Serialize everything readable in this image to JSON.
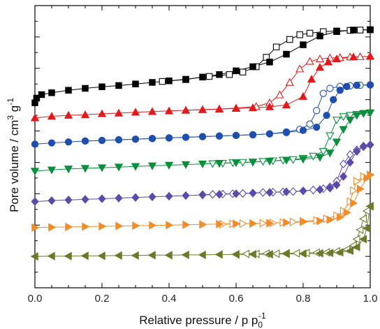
{
  "chart_data": {
    "type": "scatter",
    "title": "",
    "xlabel": "Relative pressure / p p",
    "xlabel_sub": "0",
    "xlabel_sup": "-1",
    "ylabel": "Pore volume / cm",
    "ylabel_sup1": "3",
    "ylabel_mid": " g",
    "ylabel_sup2": "-1",
    "xlim": [
      0.0,
      1.0
    ],
    "ylim": [
      0,
      9
    ],
    "y_tick_labels_shown": false,
    "x_ticks": [
      "0.0",
      "0.2",
      "0.4",
      "0.6",
      "0.8",
      "1.0"
    ],
    "grid": false,
    "legend": "none",
    "series": [
      {
        "color": "#000000",
        "marker": "square",
        "adsorption": [
          [
            0.0,
            5.9
          ],
          [
            0.005,
            6.05
          ],
          [
            0.02,
            6.16
          ],
          [
            0.05,
            6.22
          ],
          [
            0.1,
            6.3
          ],
          [
            0.15,
            6.36
          ],
          [
            0.2,
            6.41
          ],
          [
            0.25,
            6.45
          ],
          [
            0.3,
            6.5
          ],
          [
            0.35,
            6.55
          ],
          [
            0.4,
            6.6
          ],
          [
            0.45,
            6.64
          ],
          [
            0.5,
            6.72
          ],
          [
            0.55,
            6.8
          ],
          [
            0.6,
            6.92
          ],
          [
            0.65,
            7.05
          ],
          [
            0.7,
            7.2
          ],
          [
            0.75,
            7.45
          ],
          [
            0.8,
            7.75
          ],
          [
            0.85,
            8.03
          ],
          [
            0.9,
            8.17
          ],
          [
            0.95,
            8.22
          ],
          [
            1.0,
            8.23
          ]
        ],
        "desorption": [
          [
            1.0,
            8.23
          ],
          [
            0.97,
            8.22
          ],
          [
            0.94,
            8.21
          ],
          [
            0.9,
            8.19
          ],
          [
            0.86,
            8.17
          ],
          [
            0.82,
            8.12
          ],
          [
            0.79,
            8.07
          ],
          [
            0.76,
            7.92
          ],
          [
            0.72,
            7.68
          ],
          [
            0.69,
            7.35
          ],
          [
            0.66,
            7.05
          ],
          [
            0.62,
            6.88
          ],
          [
            0.58,
            6.8
          ],
          [
            0.52,
            6.74
          ],
          [
            0.45,
            6.65
          ],
          [
            0.38,
            6.58
          ]
        ]
      },
      {
        "color": "#e31a1c",
        "marker": "triangle-up",
        "adsorption": [
          [
            0.0,
            5.42
          ],
          [
            0.05,
            5.47
          ],
          [
            0.1,
            5.5
          ],
          [
            0.15,
            5.52
          ],
          [
            0.2,
            5.55
          ],
          [
            0.25,
            5.57
          ],
          [
            0.3,
            5.6
          ],
          [
            0.35,
            5.62
          ],
          [
            0.4,
            5.64
          ],
          [
            0.45,
            5.66
          ],
          [
            0.5,
            5.68
          ],
          [
            0.55,
            5.7
          ],
          [
            0.6,
            5.72
          ],
          [
            0.65,
            5.74
          ],
          [
            0.7,
            5.77
          ],
          [
            0.75,
            5.83
          ],
          [
            0.8,
            6.1
          ],
          [
            0.825,
            6.65
          ],
          [
            0.85,
            7.03
          ],
          [
            0.875,
            7.2
          ],
          [
            0.9,
            7.3
          ],
          [
            0.95,
            7.36
          ],
          [
            1.0,
            7.38
          ]
        ],
        "desorption": [
          [
            1.0,
            7.38
          ],
          [
            0.97,
            7.37
          ],
          [
            0.94,
            7.36
          ],
          [
            0.91,
            7.34
          ],
          [
            0.88,
            7.33
          ],
          [
            0.85,
            7.3
          ],
          [
            0.82,
            7.22
          ],
          [
            0.79,
            6.98
          ],
          [
            0.76,
            6.55
          ],
          [
            0.73,
            6.15
          ],
          [
            0.7,
            5.9
          ],
          [
            0.66,
            5.78
          ],
          [
            0.6,
            5.73
          ],
          [
            0.55,
            5.7
          ],
          [
            0.5,
            5.68
          ],
          [
            0.45,
            5.66
          ]
        ]
      },
      {
        "color": "#1f4fae",
        "marker": "circle",
        "adsorption": [
          [
            0.0,
            4.58
          ],
          [
            0.05,
            4.62
          ],
          [
            0.1,
            4.65
          ],
          [
            0.15,
            4.68
          ],
          [
            0.2,
            4.7
          ],
          [
            0.25,
            4.72
          ],
          [
            0.3,
            4.74
          ],
          [
            0.35,
            4.76
          ],
          [
            0.4,
            4.78
          ],
          [
            0.45,
            4.8
          ],
          [
            0.5,
            4.82
          ],
          [
            0.55,
            4.84
          ],
          [
            0.6,
            4.86
          ],
          [
            0.65,
            4.88
          ],
          [
            0.7,
            4.91
          ],
          [
            0.75,
            4.95
          ],
          [
            0.8,
            5.02
          ],
          [
            0.84,
            5.12
          ],
          [
            0.87,
            5.5
          ],
          [
            0.89,
            6.0
          ],
          [
            0.91,
            6.3
          ],
          [
            0.93,
            6.42
          ],
          [
            0.96,
            6.46
          ],
          [
            1.0,
            6.47
          ]
        ],
        "desorption": [
          [
            1.0,
            6.47
          ],
          [
            0.97,
            6.46
          ],
          [
            0.94,
            6.44
          ],
          [
            0.91,
            6.42
          ],
          [
            0.88,
            6.36
          ],
          [
            0.86,
            6.2
          ],
          [
            0.84,
            5.65
          ],
          [
            0.82,
            5.22
          ],
          [
            0.79,
            5.05
          ],
          [
            0.75,
            4.97
          ],
          [
            0.7,
            4.91
          ],
          [
            0.65,
            4.88
          ],
          [
            0.6,
            4.86
          ],
          [
            0.55,
            4.84
          ],
          [
            0.5,
            4.82
          ],
          [
            0.45,
            4.8
          ],
          [
            0.4,
            4.78
          ],
          [
            0.35,
            4.76
          ],
          [
            0.3,
            4.74
          ],
          [
            0.25,
            4.72
          ],
          [
            0.2,
            4.7
          ],
          [
            0.15,
            4.68
          ]
        ]
      },
      {
        "color": "#0a8f3c",
        "marker": "triangle-down",
        "adsorption": [
          [
            0.0,
            3.72
          ],
          [
            0.05,
            3.76
          ],
          [
            0.1,
            3.79
          ],
          [
            0.15,
            3.81
          ],
          [
            0.2,
            3.83
          ],
          [
            0.25,
            3.85
          ],
          [
            0.3,
            3.87
          ],
          [
            0.35,
            3.89
          ],
          [
            0.4,
            3.91
          ],
          [
            0.45,
            3.93
          ],
          [
            0.5,
            3.95
          ],
          [
            0.55,
            3.97
          ],
          [
            0.6,
            3.99
          ],
          [
            0.65,
            4.01
          ],
          [
            0.7,
            4.04
          ],
          [
            0.75,
            4.07
          ],
          [
            0.8,
            4.1
          ],
          [
            0.85,
            4.16
          ],
          [
            0.88,
            4.3
          ],
          [
            0.9,
            4.65
          ],
          [
            0.92,
            5.05
          ],
          [
            0.94,
            5.35
          ],
          [
            0.96,
            5.5
          ],
          [
            0.98,
            5.56
          ],
          [
            1.0,
            5.58
          ]
        ],
        "desorption": [
          [
            1.0,
            5.58
          ],
          [
            0.98,
            5.56
          ],
          [
            0.96,
            5.53
          ],
          [
            0.94,
            5.5
          ],
          [
            0.92,
            5.46
          ],
          [
            0.9,
            5.35
          ],
          [
            0.88,
            4.85
          ],
          [
            0.86,
            4.35
          ],
          [
            0.83,
            4.2
          ],
          [
            0.8,
            4.13
          ],
          [
            0.77,
            4.09
          ],
          [
            0.74,
            4.07
          ],
          [
            0.71,
            4.05
          ],
          [
            0.68,
            4.03
          ],
          [
            0.65,
            4.01
          ],
          [
            0.62,
            4.0
          ],
          [
            0.59,
            3.99
          ],
          [
            0.56,
            3.97
          ],
          [
            0.53,
            3.96
          ]
        ]
      },
      {
        "color": "#5b4aa8",
        "marker": "diamond",
        "adsorption": [
          [
            0.0,
            2.75
          ],
          [
            0.05,
            2.78
          ],
          [
            0.1,
            2.8
          ],
          [
            0.15,
            2.82
          ],
          [
            0.2,
            2.84
          ],
          [
            0.25,
            2.86
          ],
          [
            0.3,
            2.88
          ],
          [
            0.35,
            2.9
          ],
          [
            0.4,
            2.92
          ],
          [
            0.45,
            2.94
          ],
          [
            0.5,
            2.96
          ],
          [
            0.55,
            2.98
          ],
          [
            0.6,
            3.0
          ],
          [
            0.65,
            3.02
          ],
          [
            0.7,
            3.04
          ],
          [
            0.75,
            3.06
          ],
          [
            0.8,
            3.09
          ],
          [
            0.85,
            3.13
          ],
          [
            0.88,
            3.18
          ],
          [
            0.9,
            3.28
          ],
          [
            0.92,
            3.55
          ],
          [
            0.94,
            4.0
          ],
          [
            0.96,
            4.35
          ],
          [
            0.98,
            4.52
          ],
          [
            1.0,
            4.56
          ]
        ],
        "desorption": [
          [
            1.0,
            4.56
          ],
          [
            0.98,
            4.5
          ],
          [
            0.96,
            4.4
          ],
          [
            0.94,
            4.25
          ],
          [
            0.92,
            3.95
          ],
          [
            0.9,
            3.4
          ],
          [
            0.88,
            3.22
          ],
          [
            0.86,
            3.16
          ],
          [
            0.83,
            3.12
          ],
          [
            0.8,
            3.09
          ],
          [
            0.77,
            3.07
          ],
          [
            0.74,
            3.06
          ],
          [
            0.71,
            3.05
          ],
          [
            0.68,
            3.04
          ],
          [
            0.65,
            3.02
          ],
          [
            0.62,
            3.01
          ],
          [
            0.59,
            3.0
          ],
          [
            0.56,
            2.99
          ],
          [
            0.53,
            2.98
          ],
          [
            0.5,
            2.97
          ]
        ]
      },
      {
        "color": "#f28c28",
        "marker": "triangle-right",
        "adsorption": [
          [
            0.0,
            1.92
          ],
          [
            0.05,
            1.93
          ],
          [
            0.1,
            1.94
          ],
          [
            0.15,
            1.95
          ],
          [
            0.2,
            1.96
          ],
          [
            0.25,
            1.97
          ],
          [
            0.3,
            1.98
          ],
          [
            0.35,
            1.99
          ],
          [
            0.4,
            2.0
          ],
          [
            0.45,
            2.01
          ],
          [
            0.5,
            2.02
          ],
          [
            0.55,
            2.03
          ],
          [
            0.6,
            2.04
          ],
          [
            0.65,
            2.05
          ],
          [
            0.7,
            2.06
          ],
          [
            0.75,
            2.08
          ],
          [
            0.8,
            2.1
          ],
          [
            0.85,
            2.13
          ],
          [
            0.88,
            2.17
          ],
          [
            0.91,
            2.25
          ],
          [
            0.93,
            2.4
          ],
          [
            0.95,
            2.7
          ],
          [
            0.97,
            3.15
          ],
          [
            0.99,
            3.5
          ],
          [
            1.0,
            3.6
          ]
        ],
        "desorption": [
          [
            1.0,
            3.6
          ],
          [
            0.98,
            3.55
          ],
          [
            0.96,
            3.4
          ],
          [
            0.95,
            3.1
          ],
          [
            0.94,
            2.75
          ],
          [
            0.92,
            2.45
          ],
          [
            0.9,
            2.3
          ],
          [
            0.87,
            2.2
          ],
          [
            0.84,
            2.15
          ],
          [
            0.8,
            2.12
          ],
          [
            0.77,
            2.1
          ],
          [
            0.74,
            2.08
          ],
          [
            0.71,
            2.07
          ],
          [
            0.68,
            2.06
          ],
          [
            0.65,
            2.05
          ],
          [
            0.62,
            2.05
          ],
          [
            0.59,
            2.04
          ],
          [
            0.56,
            2.03
          ]
        ]
      },
      {
        "color": "#6b7a2a",
        "marker": "triangle-left",
        "adsorption": [
          [
            0.0,
            1.0
          ],
          [
            0.05,
            1.01
          ],
          [
            0.1,
            1.01
          ],
          [
            0.15,
            1.02
          ],
          [
            0.2,
            1.02
          ],
          [
            0.25,
            1.03
          ],
          [
            0.3,
            1.03
          ],
          [
            0.35,
            1.04
          ],
          [
            0.4,
            1.04
          ],
          [
            0.45,
            1.05
          ],
          [
            0.5,
            1.05
          ],
          [
            0.55,
            1.06
          ],
          [
            0.6,
            1.06
          ],
          [
            0.65,
            1.07
          ],
          [
            0.7,
            1.07
          ],
          [
            0.75,
            1.08
          ],
          [
            0.8,
            1.09
          ],
          [
            0.85,
            1.1
          ],
          [
            0.88,
            1.11
          ],
          [
            0.91,
            1.13
          ],
          [
            0.94,
            1.18
          ],
          [
            0.96,
            1.3
          ],
          [
            0.98,
            1.55
          ],
          [
            0.99,
            1.9
          ],
          [
            1.0,
            2.6
          ]
        ],
        "desorption": [
          [
            1.0,
            2.6
          ],
          [
            0.99,
            2.45
          ],
          [
            0.98,
            2.2
          ],
          [
            0.97,
            1.85
          ],
          [
            0.96,
            1.55
          ],
          [
            0.95,
            1.35
          ],
          [
            0.93,
            1.22
          ],
          [
            0.9,
            1.16
          ],
          [
            0.87,
            1.13
          ],
          [
            0.84,
            1.12
          ],
          [
            0.81,
            1.11
          ],
          [
            0.78,
            1.1
          ],
          [
            0.75,
            1.1
          ],
          [
            0.72,
            1.09
          ],
          [
            0.69,
            1.09
          ],
          [
            0.66,
            1.08
          ],
          [
            0.63,
            1.08
          ],
          [
            0.6,
            1.07
          ]
        ]
      }
    ]
  }
}
